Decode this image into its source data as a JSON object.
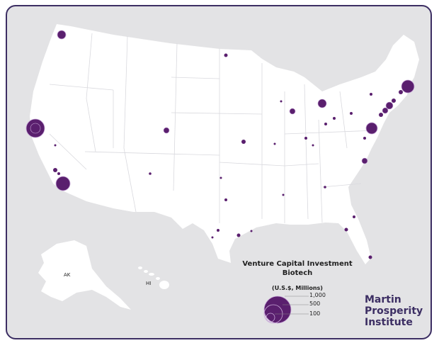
{
  "legend": {
    "title_line1": "Venture Capital Investment",
    "title_line2": "Biotech",
    "units": "(U.S.$, Millions)",
    "values": [
      "1,000",
      "500",
      "100"
    ]
  },
  "labels": {
    "alaska": "AK",
    "hawaii": "HI"
  },
  "logo": {
    "line1": "Martin",
    "line2": "Prosperity",
    "line3": "Institute"
  },
  "colors": {
    "bubble": "#5a1f6e",
    "frame": "#3c2e63",
    "land": "#ffffff",
    "water": "#e3e3e5"
  },
  "metros": [
    {
      "region": "Seattle",
      "value": 120
    },
    {
      "region": "San Francisco Bay Area",
      "value": 1000
    },
    {
      "region": "San Diego",
      "value": 420
    },
    {
      "region": "Los Angeles",
      "value": 40
    },
    {
      "region": "Boston",
      "value": 350
    },
    {
      "region": "New York",
      "value": 110
    },
    {
      "region": "Philadelphia",
      "value": 280
    },
    {
      "region": "Chicago",
      "value": 60
    },
    {
      "region": "Ann Arbor",
      "value": 110
    },
    {
      "region": "Research Triangle",
      "value": 60
    },
    {
      "region": "Boulder",
      "value": 45
    },
    {
      "region": "Minneapolis",
      "value": 15
    },
    {
      "region": "Kansas City",
      "value": 25
    },
    {
      "region": "Houston",
      "value": 15
    },
    {
      "region": "Austin",
      "value": 10
    },
    {
      "region": "Salt Lake City",
      "value": 5
    },
    {
      "region": "Tampa",
      "value": 15
    },
    {
      "region": "Miami",
      "value": 8
    },
    {
      "region": "Atlanta",
      "value": 6
    }
  ]
}
